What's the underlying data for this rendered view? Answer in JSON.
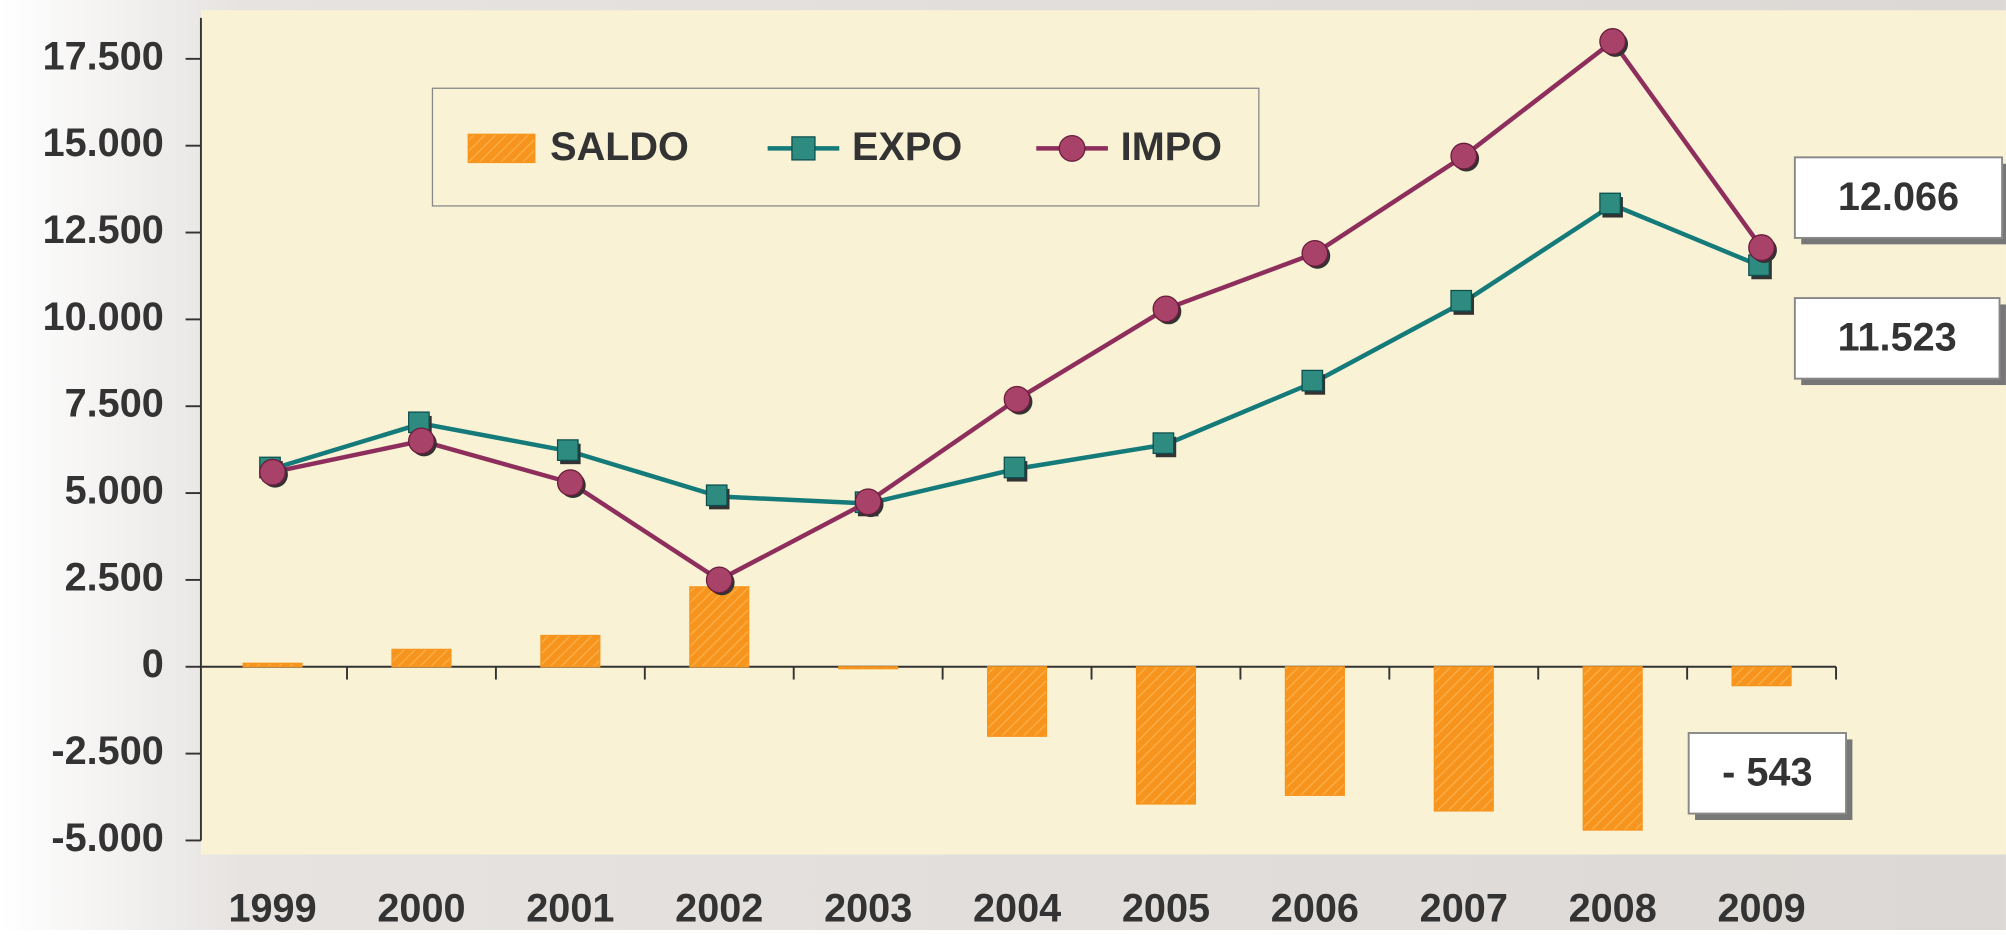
{
  "chart_data": {
    "type": "combo",
    "categories": [
      "1999",
      "2000",
      "2001",
      "2002",
      "2003",
      "2004",
      "2005",
      "2006",
      "2007",
      "2008",
      "2009"
    ],
    "series": [
      {
        "name": "SALDO",
        "kind": "bar",
        "color": "#f7941d",
        "values": [
          100,
          500,
          900,
          2300,
          -50,
          -2000,
          -3950,
          -3700,
          -4150,
          -4700,
          -543
        ],
        "value_labels": [
          null,
          null,
          null,
          null,
          null,
          null,
          null,
          null,
          null,
          null,
          "- 543"
        ]
      },
      {
        "name": "EXPO",
        "kind": "line",
        "marker": "square",
        "color": "#157a7a",
        "values": [
          5700,
          7000,
          6200,
          4900,
          4700,
          5700,
          6400,
          8200,
          10500,
          13300,
          11523
        ],
        "value_labels": [
          null,
          null,
          null,
          null,
          null,
          null,
          null,
          null,
          null,
          null,
          "11.523"
        ]
      },
      {
        "name": "IMPO",
        "kind": "line",
        "marker": "circle",
        "color": "#8e2e5c",
        "values": [
          5600,
          6500,
          5300,
          2500,
          4750,
          7700,
          10300,
          11900,
          14700,
          18000,
          12066
        ],
        "value_labels": [
          null,
          null,
          null,
          null,
          null,
          null,
          null,
          null,
          null,
          null,
          "12.066"
        ]
      }
    ],
    "ylim": [
      -5000,
      17500
    ],
    "yticks": [
      {
        "value": -5000,
        "label": "-5.000"
      },
      {
        "value": -2500,
        "label": "-2.500"
      },
      0,
      {
        "value": 2500,
        "label": "2.500"
      },
      {
        "value": 5000,
        "label": "5.000"
      },
      {
        "value": 7500,
        "label": "7.500"
      },
      {
        "value": 10000,
        "label": "10.000"
      },
      {
        "value": 12500,
        "label": "12.500"
      },
      {
        "value": 15000,
        "label": "15.000"
      },
      {
        "value": 17500,
        "label": "17.500"
      }
    ],
    "legend": "top-left"
  }
}
